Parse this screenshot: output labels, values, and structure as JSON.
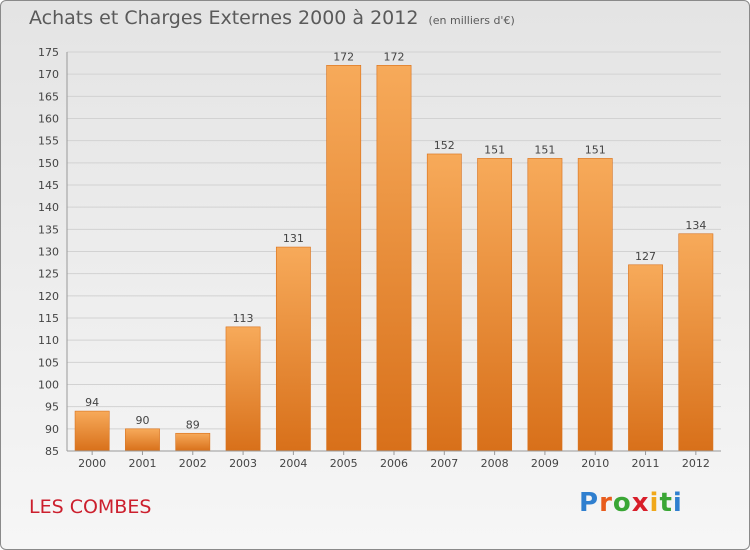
{
  "header": {
    "title": "Achats et Charges Externes 2000 à 2012",
    "unit": "(en milliers d'€)"
  },
  "footer": {
    "commune": "LES COMBES",
    "logo_letters": [
      "P",
      "r",
      "o",
      "x",
      "i",
      "t",
      "i"
    ],
    "logo_colors": [
      "#2f7fcf",
      "#e85c1c",
      "#3aa635",
      "#d81e2a",
      "#f0a81a",
      "#3aa635",
      "#2f7fcf"
    ]
  },
  "colors": {
    "bar": "#f08a2a",
    "bar_light": "#f7aa5a",
    "bar_dark": "#d8701a",
    "title_text": "#5a5a5a",
    "commune_text": "#cc1f2d"
  },
  "chart_data": {
    "type": "bar",
    "categories": [
      "2000",
      "2001",
      "2002",
      "2003",
      "2004",
      "2005",
      "2006",
      "2007",
      "2008",
      "2009",
      "2010",
      "2011",
      "2012"
    ],
    "values": [
      94,
      90,
      89,
      113,
      131,
      172,
      172,
      152,
      151,
      151,
      151,
      127,
      134
    ],
    "ylim": [
      85,
      175
    ],
    "yticks": [
      85,
      90,
      95,
      100,
      105,
      110,
      115,
      120,
      125,
      130,
      135,
      140,
      145,
      150,
      155,
      160,
      165,
      170,
      175
    ],
    "grid": true,
    "data_labels": true
  }
}
